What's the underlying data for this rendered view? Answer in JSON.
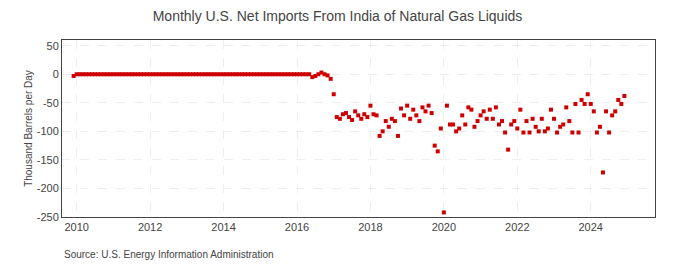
{
  "chart_data": {
    "type": "scatter",
    "title": "Monthly U.S. Net Imports From India of Natural Gas Liquids",
    "ylabel": "Thousand Barrels per Day",
    "annotations": [
      "Source: U.S. Energy Information Administration"
    ],
    "color": "#cc0000",
    "marker": "square",
    "grid": true,
    "xlim": [
      2009.6,
      2025.75
    ],
    "xticks": [
      2010,
      2012,
      2014,
      2016,
      2018,
      2020,
      2022,
      2024
    ],
    "ylim": [
      -250,
      60
    ],
    "yticks": [
      50,
      0,
      -50,
      -100,
      -150,
      -200,
      -250
    ],
    "x": [
      2009.917,
      2010.0,
      2010.083,
      2010.167,
      2010.25,
      2010.333,
      2010.417,
      2010.5,
      2010.583,
      2010.667,
      2010.75,
      2010.833,
      2010.917,
      2011.0,
      2011.083,
      2011.167,
      2011.25,
      2011.333,
      2011.417,
      2011.5,
      2011.583,
      2011.667,
      2011.75,
      2011.833,
      2011.917,
      2012.0,
      2012.083,
      2012.167,
      2012.25,
      2012.333,
      2012.417,
      2012.5,
      2012.583,
      2012.667,
      2012.75,
      2012.833,
      2012.917,
      2013.0,
      2013.083,
      2013.167,
      2013.25,
      2013.333,
      2013.417,
      2013.5,
      2013.583,
      2013.667,
      2013.75,
      2013.833,
      2013.917,
      2014.0,
      2014.083,
      2014.167,
      2014.25,
      2014.333,
      2014.417,
      2014.5,
      2014.583,
      2014.667,
      2014.75,
      2014.833,
      2014.917,
      2015.0,
      2015.083,
      2015.167,
      2015.25,
      2015.333,
      2015.417,
      2015.5,
      2015.583,
      2015.667,
      2015.75,
      2015.833,
      2015.917,
      2016.0,
      2016.083,
      2016.167,
      2016.25,
      2016.333,
      2016.417,
      2016.5,
      2016.583,
      2016.667,
      2016.75,
      2016.833,
      2016.917,
      2017.0,
      2017.083,
      2017.167,
      2017.25,
      2017.333,
      2017.417,
      2017.5,
      2017.583,
      2017.667,
      2017.75,
      2017.833,
      2017.917,
      2018.0,
      2018.083,
      2018.167,
      2018.25,
      2018.333,
      2018.417,
      2018.5,
      2018.583,
      2018.667,
      2018.75,
      2018.833,
      2018.917,
      2019.0,
      2019.083,
      2019.167,
      2019.25,
      2019.333,
      2019.417,
      2019.5,
      2019.583,
      2019.667,
      2019.75,
      2019.833,
      2019.917,
      2020.0,
      2020.083,
      2020.167,
      2020.25,
      2020.333,
      2020.417,
      2020.5,
      2020.583,
      2020.667,
      2020.75,
      2020.833,
      2020.917,
      2021.0,
      2021.083,
      2021.167,
      2021.25,
      2021.333,
      2021.417,
      2021.5,
      2021.583,
      2021.667,
      2021.75,
      2021.833,
      2021.917,
      2022.0,
      2022.083,
      2022.167,
      2022.25,
      2022.333,
      2022.417,
      2022.5,
      2022.583,
      2022.667,
      2022.75,
      2022.833,
      2022.917,
      2023.0,
      2023.083,
      2023.167,
      2023.25,
      2023.333,
      2023.417,
      2023.5,
      2023.583,
      2023.667,
      2023.75,
      2023.833,
      2023.917,
      2024.0,
      2024.083,
      2024.167,
      2024.25,
      2024.333,
      2024.417,
      2024.5,
      2024.583,
      2024.667,
      2024.75,
      2024.833,
      2024.917
    ],
    "values": [
      -3,
      0,
      0,
      0,
      0,
      0,
      0,
      0,
      0,
      0,
      0,
      0,
      0,
      0,
      0,
      0,
      0,
      0,
      0,
      0,
      0,
      0,
      0,
      0,
      0,
      0,
      0,
      0,
      0,
      0,
      0,
      0,
      0,
      0,
      0,
      0,
      0,
      0,
      0,
      0,
      0,
      0,
      0,
      0,
      0,
      0,
      0,
      0,
      0,
      0,
      0,
      0,
      0,
      0,
      0,
      0,
      0,
      0,
      0,
      0,
      0,
      0,
      0,
      0,
      0,
      0,
      0,
      0,
      0,
      0,
      0,
      0,
      0,
      0,
      0,
      0,
      0,
      0,
      -5,
      -3,
      0,
      3,
      0,
      -2,
      -8,
      -35,
      -75,
      -78,
      -70,
      -68,
      -75,
      -80,
      -65,
      -72,
      -78,
      -70,
      -75,
      -55,
      -70,
      -72,
      -108,
      -100,
      -82,
      -92,
      -78,
      -82,
      -108,
      -60,
      -72,
      -55,
      -78,
      -62,
      -72,
      -82,
      -58,
      -65,
      -55,
      -68,
      -125,
      -135,
      -95,
      -242,
      -55,
      -88,
      -88,
      -100,
      -95,
      -72,
      -88,
      -58,
      -62,
      -92,
      -82,
      -72,
      -65,
      -78,
      -62,
      -78,
      -58,
      -88,
      -82,
      -102,
      -132,
      -88,
      -82,
      -95,
      -62,
      -102,
      -82,
      -102,
      -78,
      -92,
      -100,
      -78,
      -100,
      -95,
      -62,
      -78,
      -102,
      -92,
      -88,
      -58,
      -82,
      -102,
      -52,
      -102,
      -45,
      -52,
      -35,
      -52,
      -65,
      -102,
      -92,
      -172,
      -65,
      -102,
      -72,
      -65,
      -45,
      -52,
      -38
    ]
  }
}
